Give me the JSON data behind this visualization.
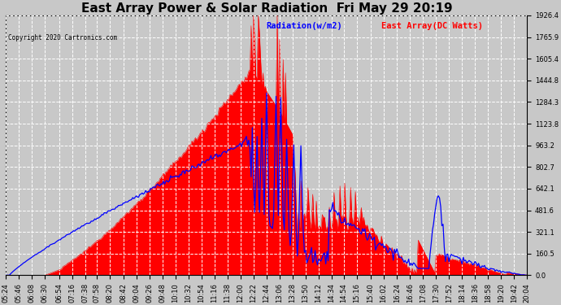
{
  "title": "East Array Power & Solar Radiation  Fri May 29 20:19",
  "copyright": "Copyright 2020 Cartronics.com",
  "legend_radiation": "Radiation(w/m2)",
  "legend_east": "East Array(DC Watts)",
  "radiation_color": "blue",
  "east_color": "red",
  "fill_color": "red",
  "background_color": "#c8c8c8",
  "plot_bg_color": "#c8c8c8",
  "grid_color": "white",
  "yticks": [
    0.0,
    160.5,
    321.1,
    481.6,
    642.1,
    802.7,
    963.2,
    1123.8,
    1284.3,
    1444.8,
    1605.4,
    1765.9,
    1926.4
  ],
  "ymax": 1926.4,
  "ymin": 0.0,
  "title_fontsize": 11,
  "tick_fontsize": 6,
  "x_tick_labels": [
    "05:24",
    "05:46",
    "06:08",
    "06:30",
    "06:54",
    "07:16",
    "07:38",
    "07:58",
    "08:20",
    "08:42",
    "09:04",
    "09:26",
    "09:48",
    "10:10",
    "10:32",
    "10:54",
    "11:16",
    "11:38",
    "12:00",
    "12:22",
    "12:44",
    "13:06",
    "13:28",
    "13:50",
    "14:12",
    "14:34",
    "14:54",
    "15:16",
    "15:40",
    "16:02",
    "16:24",
    "16:46",
    "17:08",
    "17:30",
    "17:52",
    "18:14",
    "18:36",
    "18:58",
    "19:20",
    "19:42",
    "20:04"
  ]
}
